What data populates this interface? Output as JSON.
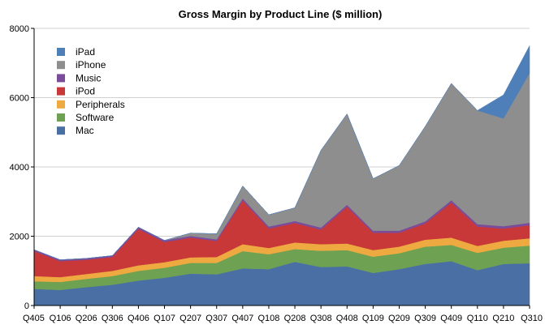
{
  "chart_data": {
    "type": "area",
    "stacked": true,
    "title": "Gross Margin by Product Line ($ million)",
    "xlabel": "",
    "ylabel": "",
    "ylim": [
      0,
      8000
    ],
    "yticks": [
      "0",
      "2000",
      "4000",
      "6000",
      "8000"
    ],
    "categories": [
      "Q405",
      "Q106",
      "Q206",
      "Q306",
      "Q406",
      "Q107",
      "Q207",
      "Q307",
      "Q407",
      "Q108",
      "Q208",
      "Q308",
      "Q408",
      "Q109",
      "Q209",
      "Q309",
      "Q409",
      "Q110",
      "Q210",
      "Q310"
    ],
    "grid": true,
    "legend_position": "top-left",
    "series": [
      {
        "name": "Mac",
        "color": "#4a6fa5",
        "values": [
          480,
          450,
          530,
          600,
          720,
          800,
          920,
          900,
          1070,
          1050,
          1260,
          1110,
          1130,
          940,
          1050,
          1200,
          1280,
          1020,
          1200,
          1220
        ]
      },
      {
        "name": "Software",
        "color": "#6fa152",
        "values": [
          220,
          230,
          240,
          250,
          280,
          290,
          310,
          330,
          500,
          430,
          370,
          470,
          470,
          470,
          460,
          500,
          470,
          500,
          470,
          510
        ]
      },
      {
        "name": "Peripherals",
        "color": "#eeaa40",
        "values": [
          150,
          140,
          140,
          150,
          160,
          160,
          160,
          170,
          200,
          180,
          190,
          190,
          190,
          190,
          190,
          200,
          210,
          200,
          200,
          210
        ]
      },
      {
        "name": "iPod",
        "color": "#c93838",
        "values": [
          720,
          460,
          410,
          400,
          1050,
          580,
          570,
          460,
          1260,
          560,
          560,
          420,
          1060,
          500,
          400,
          470,
          1010,
          560,
          350,
          380
        ]
      },
      {
        "name": "Music",
        "color": "#7b4c9a",
        "values": [
          40,
          40,
          40,
          40,
          50,
          50,
          50,
          50,
          60,
          60,
          60,
          60,
          60,
          60,
          60,
          60,
          70,
          70,
          70,
          70
        ]
      },
      {
        "name": "iPhone",
        "color": "#8e8e8e",
        "values": [
          0,
          0,
          0,
          0,
          0,
          0,
          80,
          160,
          360,
          340,
          380,
          2230,
          2620,
          1500,
          1880,
          2740,
          3370,
          3280,
          3110,
          4320
        ]
      },
      {
        "name": "iPad",
        "color": "#4f7fb8",
        "values": [
          0,
          0,
          0,
          0,
          0,
          0,
          0,
          0,
          0,
          0,
          0,
          0,
          0,
          0,
          0,
          0,
          0,
          0,
          680,
          790
        ]
      }
    ]
  }
}
